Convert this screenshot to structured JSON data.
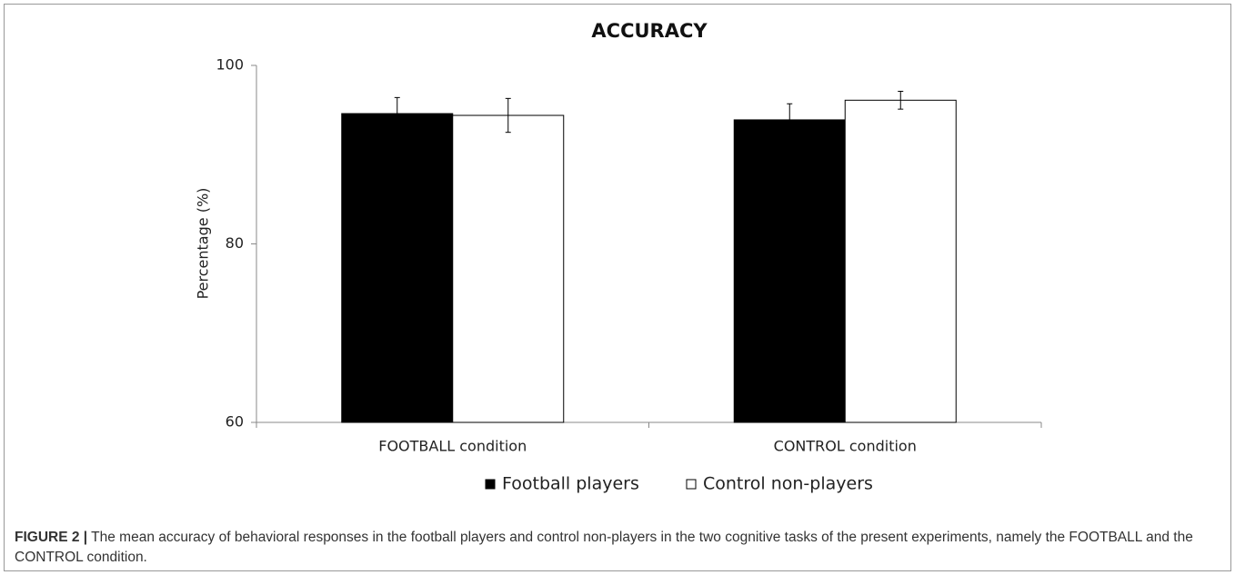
{
  "chart_data": {
    "type": "bar",
    "title": "ACCURACY",
    "y_label": "Percentage (%)",
    "categories": [
      "FOOTBALL condition",
      "CONTROL condition"
    ],
    "series": [
      {
        "name": "Football players",
        "color": "#000000",
        "values": [
          94.6,
          93.9
        ],
        "errors": [
          1.8,
          1.8
        ]
      },
      {
        "name": "Control non-players",
        "color": "#ffffff",
        "values": [
          94.4,
          96.1
        ],
        "errors": [
          1.9,
          1.0
        ]
      }
    ],
    "ylim": [
      60,
      100
    ],
    "yticks": [
      60,
      80,
      100
    ],
    "legend": "bottom"
  },
  "caption": {
    "label": "FIGURE 2 |",
    "text": "The mean accuracy of behavioral responses in the football players and control non-players in the two cognitive tasks of the present experiments, namely the FOOTBALL and the CONTROL condition."
  }
}
